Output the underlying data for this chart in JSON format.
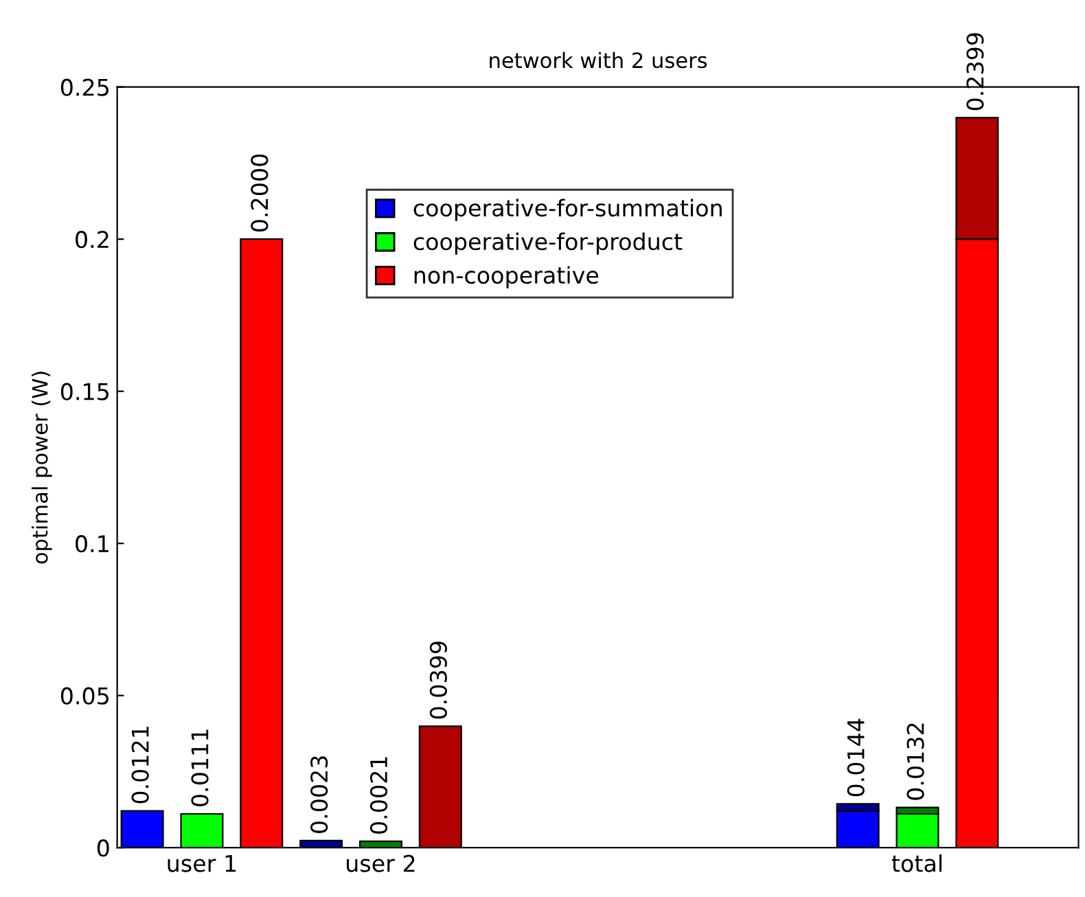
{
  "chart_data": {
    "type": "bar",
    "title": "network with 2 users",
    "ylabel": "optimal power (W)",
    "categories": [
      null,
      "user 1",
      null,
      null,
      "user 2",
      null,
      null,
      null,
      null,
      null,
      null,
      null,
      null,
      "total",
      null
    ],
    "stacked": true,
    "series": [
      {
        "name": "cooperative-for-summation",
        "color": "#0000ff",
        "colors": [
          "#0000ff",
          null,
          null,
          "#000090",
          null,
          null,
          null,
          null,
          null,
          null,
          null,
          null,
          "#0000ff",
          null,
          null
        ],
        "values": [
          0.0121,
          null,
          null,
          0.0023,
          null,
          null,
          null,
          null,
          null,
          null,
          null,
          null,
          0.0121,
          null,
          null
        ],
        "value_labels": [
          "0.0121",
          null,
          null,
          "0.0023",
          null,
          null,
          null,
          null,
          null,
          null,
          null,
          null,
          null,
          null,
          null
        ]
      },
      {
        "name": "cooperative-for-product",
        "color": "#00ff00",
        "colors": [
          null,
          "#00ff00",
          null,
          null,
          "#008000",
          null,
          null,
          null,
          null,
          null,
          null,
          null,
          null,
          "#00ff00",
          null
        ],
        "values": [
          null,
          0.0111,
          null,
          null,
          0.0021,
          null,
          null,
          null,
          null,
          null,
          null,
          null,
          null,
          0.0111,
          null
        ],
        "value_labels": [
          null,
          "0.0111",
          null,
          null,
          "0.0021",
          null,
          null,
          null,
          null,
          null,
          null,
          null,
          null,
          null,
          null
        ]
      },
      {
        "name": "non-cooperative",
        "color": "#ff0000",
        "colors": [
          null,
          null,
          "#ff0000",
          null,
          null,
          "#b00000",
          null,
          null,
          null,
          null,
          null,
          null,
          null,
          null,
          "#ff0000"
        ],
        "values": [
          null,
          null,
          0.2,
          null,
          null,
          0.0399,
          null,
          null,
          null,
          null,
          null,
          null,
          null,
          null,
          0.2
        ],
        "value_labels": [
          null,
          null,
          "0.2000",
          null,
          null,
          "0.0399",
          null,
          null,
          null,
          null,
          null,
          null,
          null,
          null,
          null
        ]
      },
      {
        "colors": [
          null,
          null,
          null,
          null,
          null,
          null,
          null,
          null,
          null,
          null,
          null,
          null,
          "#000090",
          "#008000",
          "#b00000"
        ],
        "values": [
          null,
          null,
          null,
          null,
          null,
          null,
          null,
          null,
          null,
          null,
          null,
          null,
          0.0023,
          0.0021,
          0.0399
        ]
      }
    ],
    "totals": [
      null,
      null,
      null,
      null,
      null,
      null,
      null,
      null,
      null,
      null,
      null,
      null,
      "0.0144",
      "0.0132",
      "0.2399"
    ],
    "ylim": [
      0,
      0.25
    ],
    "yticks": [
      0,
      0.05,
      0.1,
      0.15,
      0.2,
      0.25
    ],
    "grid": false,
    "legend": "top"
  }
}
